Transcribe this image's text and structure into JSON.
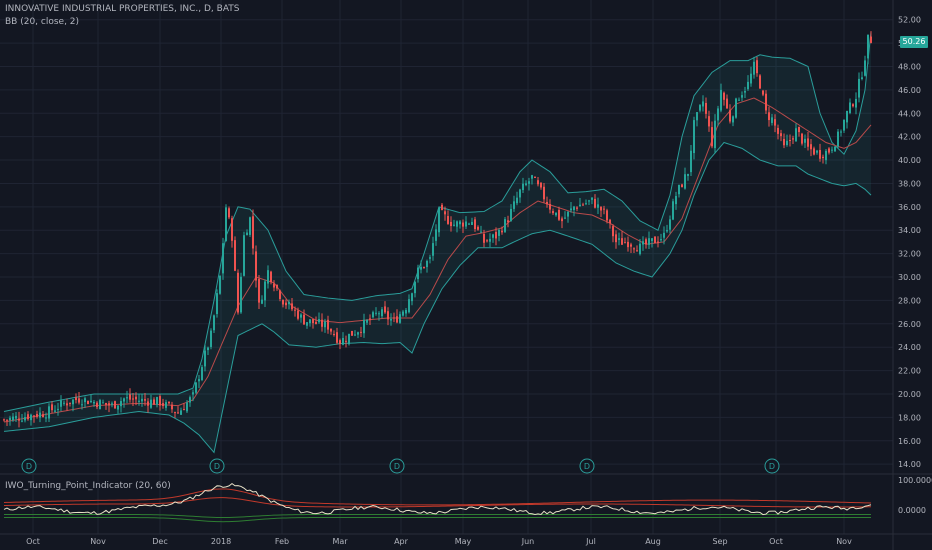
{
  "header": {
    "symbol_line": "INNOVATIVE INDUSTRIAL PROPERTIES, INC., D, BATS",
    "study_line": "BB (20, close, 2)",
    "indicator_line": "IWO_Turning_Point_Indicator (20, 60)"
  },
  "last_price_label": "50.26",
  "colors": {
    "background": "#131722",
    "up": "#26a69a",
    "down": "#ef5350",
    "band": "#2a9d9a",
    "basis": "#b84a4a",
    "grid": "#1f2433",
    "axis_text": "#b2b5be",
    "osc_line": "#e8e2c8",
    "osc_red": "#c0392b",
    "osc_green": "#2e7d32"
  },
  "chart_data": [
    {
      "type": "candlestick",
      "title": "INNOVATIVE INDUSTRIAL PROPERTIES, INC., D, BATS",
      "study": "BB (20, close, 2)",
      "y_ticks": [
        "52.00",
        "50.00",
        "48.00",
        "46.00",
        "44.00",
        "42.00",
        "40.00",
        "38.00",
        "36.00",
        "34.00",
        "32.00",
        "30.00",
        "28.00",
        "26.00",
        "24.00",
        "22.00",
        "20.00",
        "18.00",
        "16.00",
        "14.00"
      ],
      "ylim": [
        13.5,
        53
      ],
      "x_month_labels": [
        "Oct",
        "Nov",
        "Dec",
        "2018",
        "Feb",
        "Mar",
        "Apr",
        "May",
        "Jun",
        "Jul",
        "Aug",
        "Sep",
        "Oct",
        "Nov"
      ],
      "dividend_markers": [
        {
          "label": "D",
          "month_index": 0
        },
        {
          "label": "D",
          "month_index": 3
        },
        {
          "label": "D",
          "month_index": 6
        },
        {
          "label": "D",
          "month_index": 9
        },
        {
          "label": "D",
          "month_index": 12
        }
      ],
      "close_path": [
        [
          0,
          17.8
        ],
        [
          14,
          18.4
        ],
        [
          20,
          19.2
        ],
        [
          25,
          19.6
        ],
        [
          36,
          19.0
        ],
        [
          40,
          19.6
        ],
        [
          52,
          19.3
        ],
        [
          58,
          18.4
        ],
        [
          63,
          19.8
        ],
        [
          66,
          22.5
        ],
        [
          69,
          25.0
        ],
        [
          72,
          30.0
        ],
        [
          74,
          36.0
        ],
        [
          76,
          33.5
        ],
        [
          78,
          27.0
        ],
        [
          80,
          33.5
        ],
        [
          82,
          35.0
        ],
        [
          85,
          27.5
        ],
        [
          88,
          30.5
        ],
        [
          93,
          28.0
        ],
        [
          100,
          26.3
        ],
        [
          108,
          25.8
        ],
        [
          112,
          24.5
        ],
        [
          118,
          25.5
        ],
        [
          125,
          27.0
        ],
        [
          130,
          26.2
        ],
        [
          134,
          27.5
        ],
        [
          138,
          30.5
        ],
        [
          142,
          31.5
        ],
        [
          145,
          35.5
        ],
        [
          150,
          34.5
        ],
        [
          156,
          34.8
        ],
        [
          160,
          33.0
        ],
        [
          164,
          33.5
        ],
        [
          168,
          35.0
        ],
        [
          172,
          37.3
        ],
        [
          176,
          38.5
        ],
        [
          182,
          36.0
        ],
        [
          186,
          34.8
        ],
        [
          190,
          36.0
        ],
        [
          196,
          36.5
        ],
        [
          200,
          35.5
        ],
        [
          204,
          33.0
        ],
        [
          208,
          33.0
        ],
        [
          212,
          32.5
        ],
        [
          216,
          33.0
        ],
        [
          220,
          33.5
        ],
        [
          224,
          37.0
        ],
        [
          228,
          39.0
        ],
        [
          230,
          43.0
        ],
        [
          233,
          45.0
        ],
        [
          236,
          41.5
        ],
        [
          239,
          46.0
        ],
        [
          242,
          43.5
        ],
        [
          245,
          45.5
        ],
        [
          248,
          46.5
        ],
        [
          250,
          48.0
        ],
        [
          252,
          46.5
        ],
        [
          254,
          44.0
        ],
        [
          256,
          43.5
        ],
        [
          260,
          41.0
        ],
        [
          264,
          42.5
        ],
        [
          268,
          41.0
        ],
        [
          272,
          40.5
        ],
        [
          275,
          40.8
        ],
        [
          278,
          42.0
        ],
        [
          281,
          44.0
        ],
        [
          284,
          45.5
        ],
        [
          286,
          47.5
        ],
        [
          288,
          50.3
        ]
      ],
      "bb_upper_path": [
        [
          0,
          18.5
        ],
        [
          15,
          19.3
        ],
        [
          30,
          20.0
        ],
        [
          45,
          20.0
        ],
        [
          58,
          20.0
        ],
        [
          63,
          20.5
        ],
        [
          66,
          23.0
        ],
        [
          70,
          28.0
        ],
        [
          74,
          33.5
        ],
        [
          78,
          36.0
        ],
        [
          82,
          35.8
        ],
        [
          88,
          34.0
        ],
        [
          94,
          30.5
        ],
        [
          100,
          28.5
        ],
        [
          108,
          28.2
        ],
        [
          116,
          28.0
        ],
        [
          124,
          28.4
        ],
        [
          132,
          28.6
        ],
        [
          136,
          29.0
        ],
        [
          140,
          32.0
        ],
        [
          145,
          36.0
        ],
        [
          152,
          35.5
        ],
        [
          160,
          35.6
        ],
        [
          166,
          36.5
        ],
        [
          172,
          39.0
        ],
        [
          176,
          40.0
        ],
        [
          182,
          39.0
        ],
        [
          188,
          37.2
        ],
        [
          194,
          37.3
        ],
        [
          200,
          37.5
        ],
        [
          206,
          36.5
        ],
        [
          212,
          34.8
        ],
        [
          218,
          34.0
        ],
        [
          222,
          37.0
        ],
        [
          226,
          42.0
        ],
        [
          230,
          45.5
        ],
        [
          236,
          47.5
        ],
        [
          242,
          48.5
        ],
        [
          248,
          48.5
        ],
        [
          252,
          49.0
        ],
        [
          256,
          48.8
        ],
        [
          262,
          48.7
        ],
        [
          268,
          48.0
        ],
        [
          272,
          44.0
        ],
        [
          276,
          41.5
        ],
        [
          280,
          40.5
        ],
        [
          284,
          42.5
        ],
        [
          287,
          46.0
        ],
        [
          289,
          51.0
        ]
      ],
      "bb_lower_path": [
        [
          0,
          16.8
        ],
        [
          15,
          17.2
        ],
        [
          30,
          18.0
        ],
        [
          45,
          18.5
        ],
        [
          55,
          18.2
        ],
        [
          60,
          17.5
        ],
        [
          65,
          16.5
        ],
        [
          70,
          15.0
        ],
        [
          74,
          20.0
        ],
        [
          78,
          25.0
        ],
        [
          82,
          25.5
        ],
        [
          86,
          26.0
        ],
        [
          90,
          25.3
        ],
        [
          95,
          24.2
        ],
        [
          104,
          24.0
        ],
        [
          112,
          24.3
        ],
        [
          120,
          24.4
        ],
        [
          126,
          24.3
        ],
        [
          132,
          24.4
        ],
        [
          136,
          23.5
        ],
        [
          140,
          26.0
        ],
        [
          146,
          29.0
        ],
        [
          152,
          31.0
        ],
        [
          158,
          32.5
        ],
        [
          166,
          32.5
        ],
        [
          170,
          33.0
        ],
        [
          176,
          33.7
        ],
        [
          182,
          34.0
        ],
        [
          188,
          33.5
        ],
        [
          196,
          32.8
        ],
        [
          204,
          31.2
        ],
        [
          210,
          30.5
        ],
        [
          216,
          30.0
        ],
        [
          222,
          32.0
        ],
        [
          226,
          34.0
        ],
        [
          230,
          37.0
        ],
        [
          235,
          40.0
        ],
        [
          240,
          41.5
        ],
        [
          246,
          41.0
        ],
        [
          252,
          40.0
        ],
        [
          258,
          39.5
        ],
        [
          264,
          39.5
        ],
        [
          268,
          38.8
        ],
        [
          272,
          38.4
        ],
        [
          276,
          38.0
        ],
        [
          280,
          37.8
        ],
        [
          284,
          38.0
        ],
        [
          287,
          37.5
        ],
        [
          289,
          37.0
        ]
      ],
      "bb_basis_path": [
        [
          0,
          17.6
        ],
        [
          15,
          18.3
        ],
        [
          30,
          19.0
        ],
        [
          45,
          19.2
        ],
        [
          58,
          19.0
        ],
        [
          63,
          19.5
        ],
        [
          68,
          21.5
        ],
        [
          73,
          24.5
        ],
        [
          78,
          27.5
        ],
        [
          84,
          30.0
        ],
        [
          90,
          29.5
        ],
        [
          96,
          27.5
        ],
        [
          104,
          26.3
        ],
        [
          112,
          26.1
        ],
        [
          120,
          26.3
        ],
        [
          128,
          26.5
        ],
        [
          136,
          26.5
        ],
        [
          142,
          28.5
        ],
        [
          148,
          31.5
        ],
        [
          154,
          33.5
        ],
        [
          160,
          33.8
        ],
        [
          166,
          34.2
        ],
        [
          172,
          35.5
        ],
        [
          178,
          36.5
        ],
        [
          184,
          36.0
        ],
        [
          190,
          35.5
        ],
        [
          196,
          35.3
        ],
        [
          202,
          34.6
        ],
        [
          208,
          33.6
        ],
        [
          214,
          32.8
        ],
        [
          220,
          33.0
        ],
        [
          226,
          35.0
        ],
        [
          232,
          39.0
        ],
        [
          238,
          43.0
        ],
        [
          244,
          44.8
        ],
        [
          250,
          45.3
        ],
        [
          256,
          44.5
        ],
        [
          262,
          43.5
        ],
        [
          268,
          42.5
        ],
        [
          274,
          41.5
        ],
        [
          280,
          41.0
        ],
        [
          284,
          41.5
        ],
        [
          289,
          43.0
        ]
      ]
    },
    {
      "type": "line",
      "title": "IWO_Turning_Point_Indicator (20, 60)",
      "y_ticks": [
        "100.0000",
        "0.0000"
      ]
    }
  ]
}
